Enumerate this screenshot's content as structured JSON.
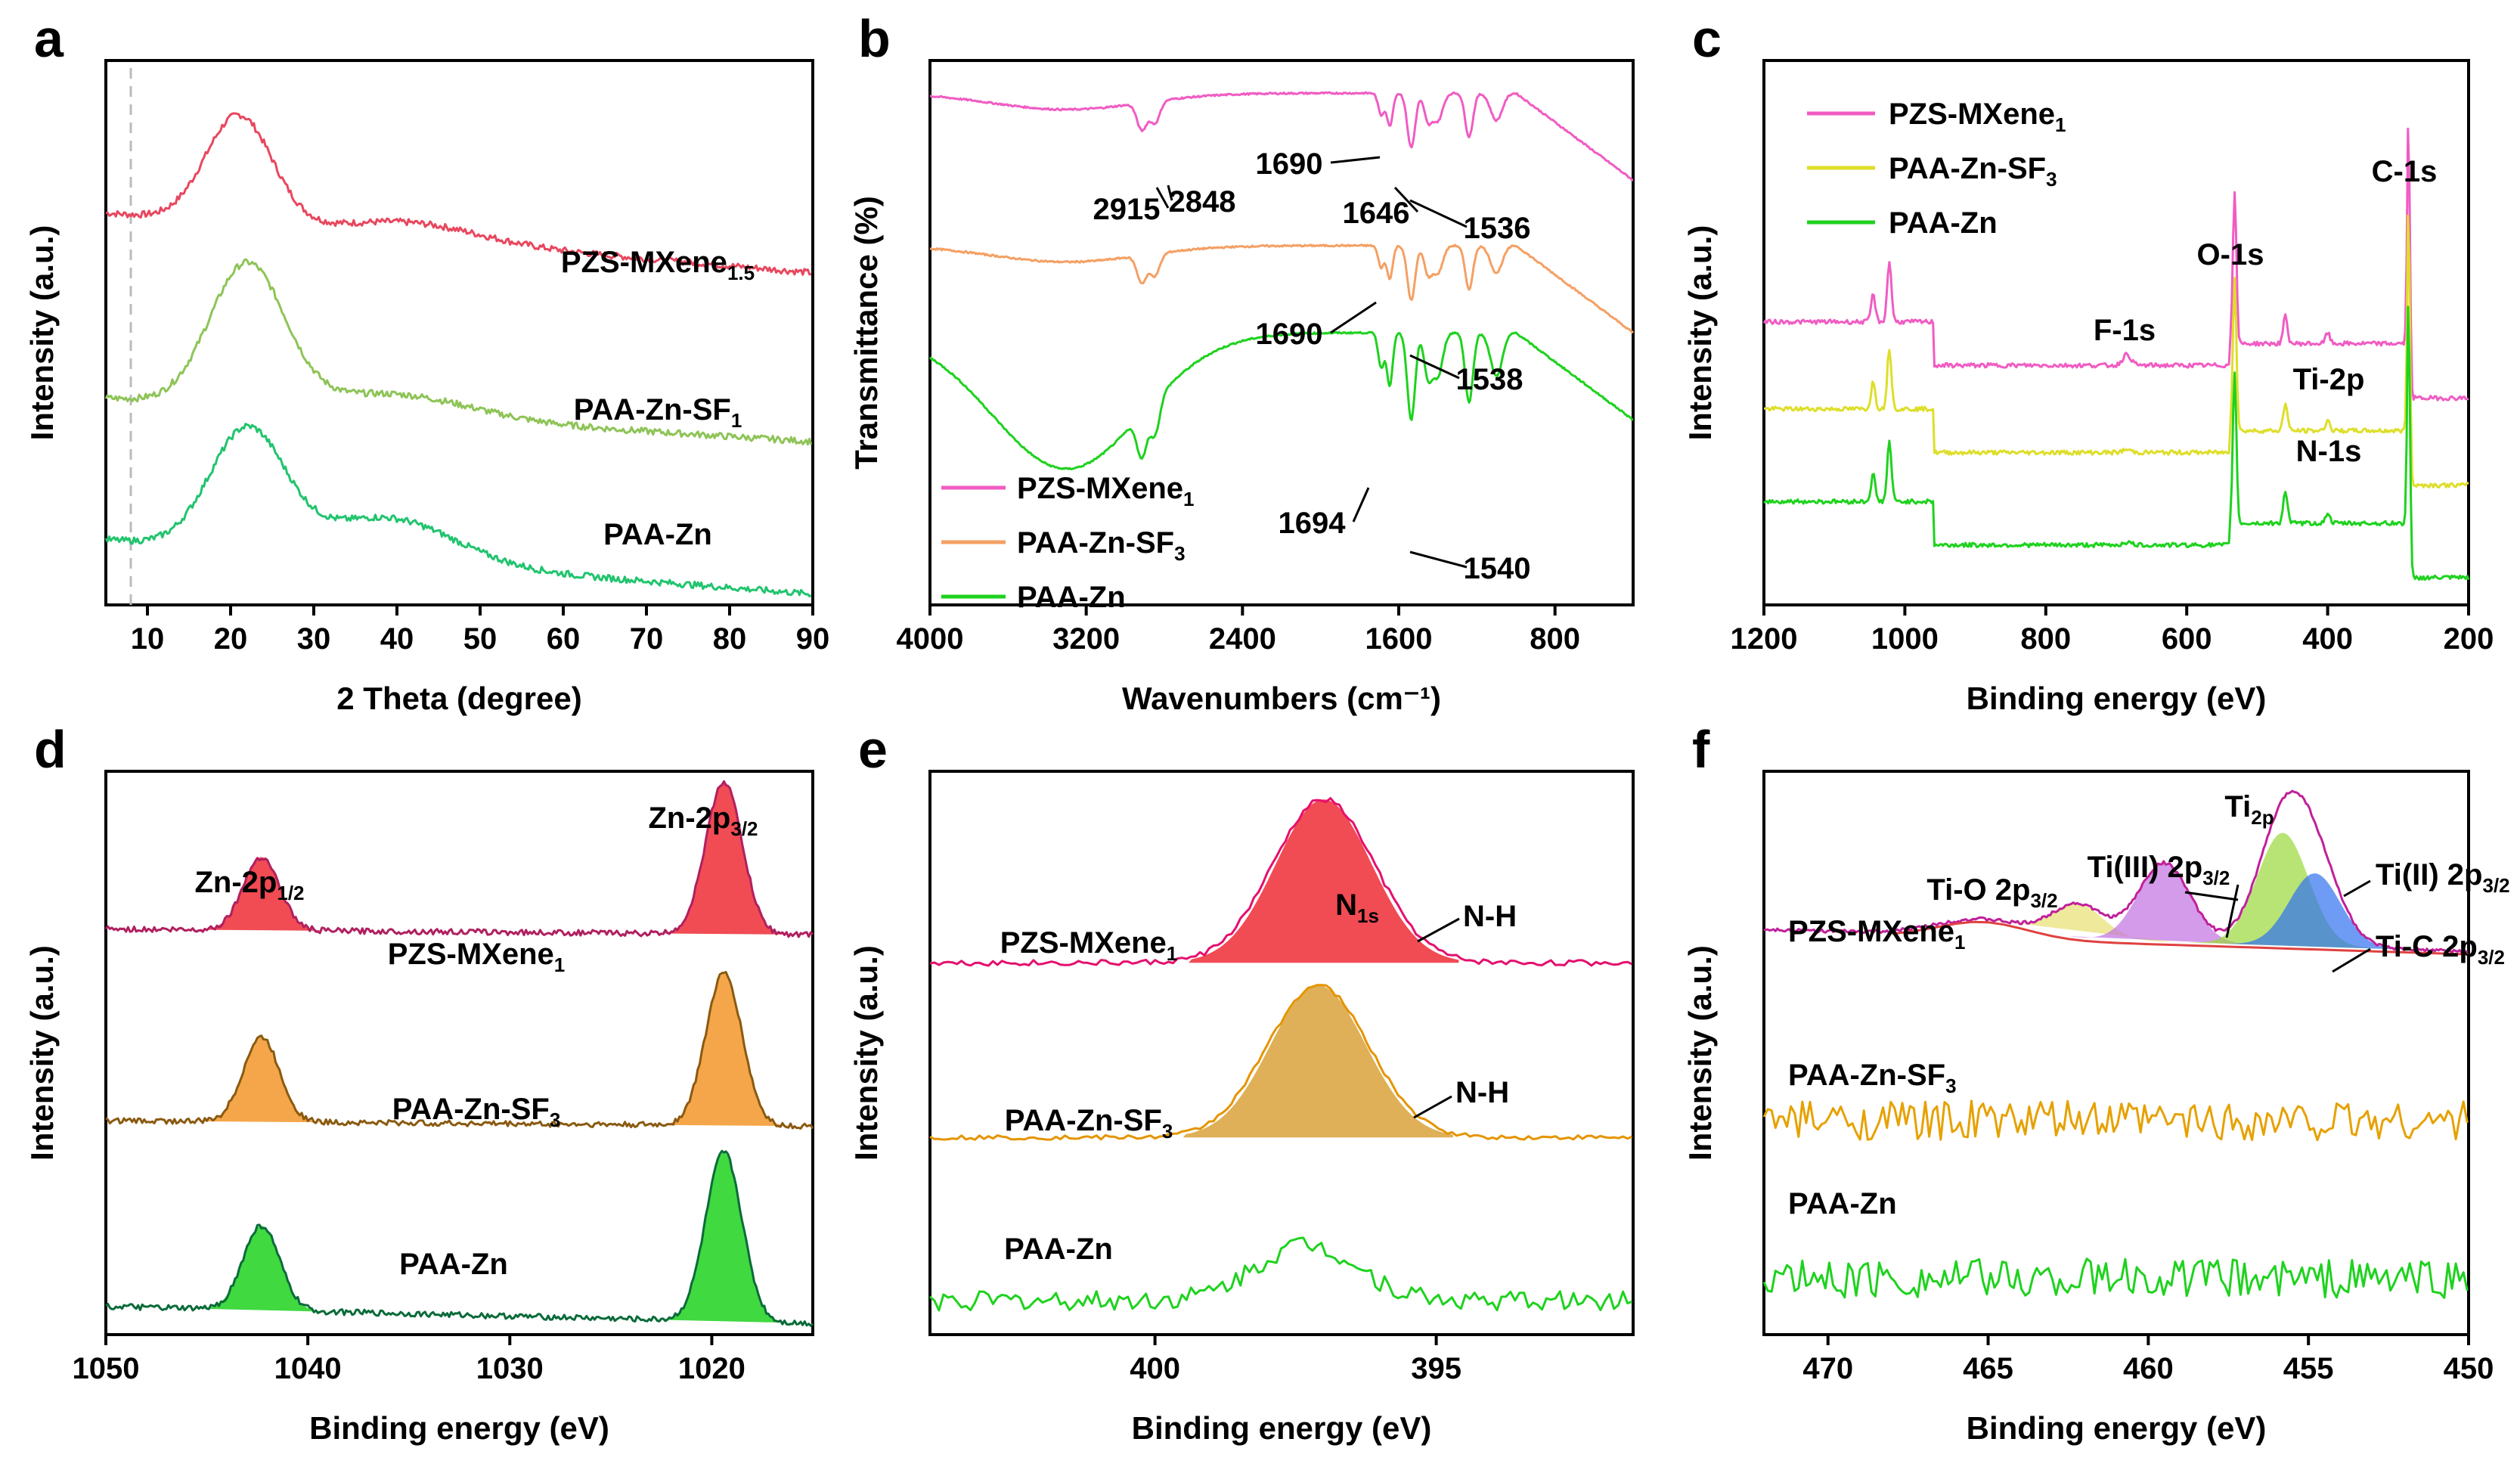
{
  "chart_data": [
    {
      "id": "a",
      "type": "line",
      "panel_label": "a",
      "xlabel": "2 Theta (degree)",
      "ylabel": "Intensity (a.u.)",
      "xlim": [
        5,
        90
      ],
      "xticks": [
        "10",
        "20",
        "30",
        "40",
        "50",
        "60",
        "70",
        "80",
        "90"
      ],
      "reference_line_x": 8,
      "series": [
        {
          "name": "PZS-MXene",
          "sub": "1.5",
          "color": "#e8475e",
          "offset": 0.72,
          "peaks": [
            [
              21,
              4,
              0.2
            ],
            [
              42,
              8,
              0.03
            ]
          ],
          "decay": 0.11,
          "noise": 0.012
        },
        {
          "name": "PAA-Zn-SF",
          "sub": "1",
          "color": "#8ec457",
          "offset": 0.38,
          "peaks": [
            [
              22,
              4.5,
              0.26
            ],
            [
              40,
              9,
              0.04
            ]
          ],
          "decay": 0.08,
          "noise": 0.012
        },
        {
          "name": "PAA-Zn",
          "sub": "",
          "color": "#21c46e",
          "offset": 0.12,
          "peaks": [
            [
              22,
              4.5,
              0.22
            ],
            [
              39,
              8,
              0.08
            ]
          ],
          "decay": 0.1,
          "noise": 0.012
        }
      ]
    },
    {
      "id": "b",
      "type": "line",
      "panel_label": "b",
      "xlabel": "Wavenumbers (cm⁻¹)",
      "ylabel": "Transmittance (%)",
      "xlim": [
        4000,
        400
      ],
      "xticks": [
        "4000",
        "3200",
        "2400",
        "1600",
        "800"
      ],
      "legend": [
        {
          "name": "PZS-MXene",
          "sub": "1"
        },
        {
          "name": "PAA-Zn-SF",
          "sub": "3"
        },
        {
          "name": "PAA-Zn",
          "sub": ""
        }
      ],
      "series": [
        {
          "name": "PZS-MXene",
          "sub": "1",
          "color": "#f05cc3",
          "offset": 0.94,
          "broad": 0.03,
          "annotations": [
            "2915",
            "2848",
            "1690",
            "1646",
            "1536"
          ]
        },
        {
          "name": "PAA-Zn-SF",
          "sub": "3",
          "color": "#f4a064",
          "offset": 0.66,
          "broad": 0.03,
          "annotations": [
            "1690",
            "1538"
          ]
        },
        {
          "name": "PAA-Zn",
          "sub": "",
          "color": "#1ed21e",
          "offset": 0.5,
          "broad": 0.25,
          "annotations": [
            "1694",
            "1540"
          ]
        }
      ]
    },
    {
      "id": "c",
      "type": "line",
      "panel_label": "c",
      "xlabel": "Binding energy (eV)",
      "ylabel": "Intensity (a.u.)",
      "xlim": [
        1200,
        200
      ],
      "xticks": [
        "1200",
        "1000",
        "800",
        "600",
        "400",
        "200"
      ],
      "legend": [
        {
          "name": "PZS-MXene",
          "sub": "1"
        },
        {
          "name": "PAA-Zn-SF",
          "sub": "3"
        },
        {
          "name": "PAA-Zn",
          "sub": ""
        }
      ],
      "peak_labels": [
        "C-1s",
        "O-1s",
        "F-1s",
        "Ti-2p",
        "N-1s"
      ],
      "series": [
        {
          "name": "PZS-MXene",
          "sub": "1",
          "color": "#f05cc3",
          "offset": 0.52
        },
        {
          "name": "PAA-Zn-SF",
          "sub": "3",
          "color": "#dede2a",
          "offset": 0.36
        },
        {
          "name": "PAA-Zn",
          "sub": "",
          "color": "#1ed21e",
          "offset": 0.19
        }
      ]
    },
    {
      "id": "d",
      "type": "line",
      "panel_label": "d",
      "xlabel": "Binding energy (eV)",
      "ylabel": "Intensity (a.u.)",
      "xlim": [
        1050,
        1015
      ],
      "xticks": [
        "1050",
        "1040",
        "1030",
        "1020"
      ],
      "peak_labels": [
        {
          "base": "Zn-2p",
          "sub": "1/2"
        },
        {
          "base": "Zn-2p",
          "sub": "3/2"
        }
      ],
      "peaks": [
        1042.3,
        1019.4
      ],
      "series": [
        {
          "name": "PZS-MXene",
          "sub": "1",
          "line": "#b02060",
          "fill": "#ee2c36",
          "offset": 0.72,
          "amp": [
            0.13,
            0.27
          ]
        },
        {
          "name": "PAA-Zn-SF",
          "sub": "3",
          "line": "#8a5a10",
          "fill": "#f3962b",
          "offset": 0.38,
          "amp": [
            0.15,
            0.27
          ]
        },
        {
          "name": "PAA-Zn",
          "sub": "",
          "line": "#0b6b3a",
          "fill": "#1ed21e",
          "offset": 0.05,
          "amp": [
            0.15,
            0.3
          ]
        }
      ]
    },
    {
      "id": "e",
      "type": "line",
      "panel_label": "e",
      "xlabel": "Binding energy (eV)",
      "ylabel": "Intensity (a.u.)",
      "xlim": [
        404,
        391.5
      ],
      "xticks": [
        "400",
        "395"
      ],
      "peak_title": {
        "base": "N",
        "sub": "1s"
      },
      "series": [
        {
          "name": "PZS-MXene",
          "sub": "1",
          "line": "#e4106e",
          "fill": "#ee2c36",
          "offset": 0.66,
          "amp": 0.29,
          "center": 397.0,
          "annotation": "N-H",
          "noise": 0.01
        },
        {
          "name": "PAA-Zn-SF",
          "sub": "3",
          "line": "#e59400",
          "fill": "#d9a23a",
          "offset": 0.35,
          "amp": 0.27,
          "center": 397.1,
          "annotation": "N-H",
          "noise": 0.008
        },
        {
          "name": "PAA-Zn",
          "sub": "",
          "line": "#1ed21e",
          "fill": "",
          "offset": 0.06,
          "amp": 0.1,
          "center": 397.3,
          "annotation": "",
          "noise": 0.035
        }
      ]
    },
    {
      "id": "f",
      "type": "line",
      "panel_label": "f",
      "xlabel": "Binding energy (eV)",
      "ylabel": "Intensity (a.u.)",
      "xlim": [
        472,
        450
      ],
      "xticks": [
        "470",
        "465",
        "460",
        "455",
        "450"
      ],
      "peak_title": {
        "base": "Ti",
        "sub": "2p"
      },
      "components": [
        {
          "label": "Ti-O 2p",
          "sub": "3/2",
          "center": 462.2,
          "amp": 0.06,
          "color": "#e8e070"
        },
        {
          "label": "Ti(III) 2p",
          "sub": "3/2",
          "center": 459.5,
          "amp": 0.14,
          "color": "#c070e0"
        },
        {
          "label": "Ti(II) 2p",
          "sub": "3/2",
          "center": 455.8,
          "amp": 0.2,
          "color": "#9ad83a"
        },
        {
          "label": "Ti-C 2p",
          "sub": "3/2",
          "center": 454.8,
          "amp": 0.13,
          "color": "#3070f0"
        }
      ],
      "series": [
        {
          "name": "PZS-MXene",
          "sub": "1",
          "color": "#c0209a",
          "offset": 0.68
        },
        {
          "name": "PAA-Zn-SF",
          "sub": "3",
          "color": "#e6a100",
          "offset": 0.38
        },
        {
          "name": "PAA-Zn",
          "sub": "",
          "color": "#1ed21e",
          "offset": 0.1
        }
      ]
    }
  ]
}
